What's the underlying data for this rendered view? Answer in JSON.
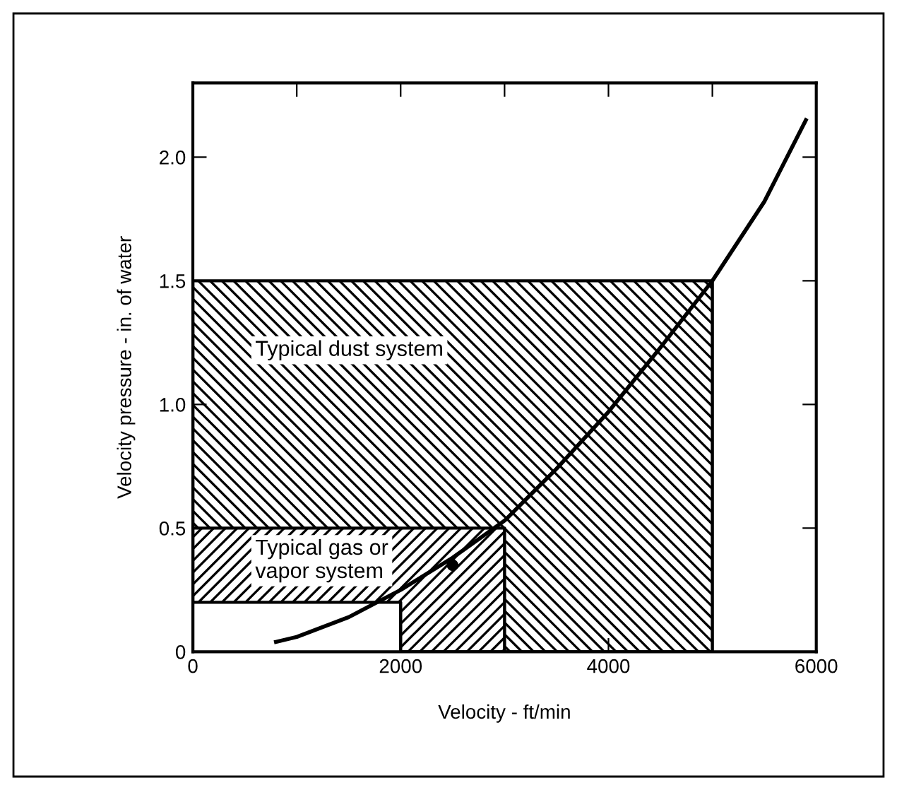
{
  "chart_data": {
    "type": "area",
    "xlabel": "Velocity - ft/min",
    "ylabel": "Velocity pressure - in. of water",
    "series": [
      {
        "color": "#000000",
        "x": [
          0,
          5000
        ],
        "values": [
          1.5,
          1.5
        ]
      },
      {
        "color": "#000000",
        "x": [
          0,
          3000
        ],
        "values": [
          0.5,
          0.5
        ]
      },
      {
        "color": "#ffffff",
        "x": [
          0,
          2000
        ],
        "values": [
          0.2,
          0.2
        ]
      },
      {
        "type": "line",
        "color": "#000000",
        "x": [
          800,
          1000,
          1500,
          2000,
          2500,
          3000,
          3500,
          4000,
          4500,
          5000,
          5500,
          5900
        ],
        "values": [
          0.04,
          0.06,
          0.14,
          0.25,
          0.38,
          0.53,
          0.74,
          0.97,
          1.23,
          1.5,
          1.82,
          2.15
        ]
      },
      {
        "type": "scatter",
        "color": "#000000",
        "x": [
          2500
        ],
        "values": [
          0.35
        ]
      }
    ],
    "annotations": [
      "Typical dust system",
      "Typical gas or\nvapor system"
    ],
    "xlim": [
      0,
      6000
    ],
    "ylim": [
      0,
      2.3
    ],
    "xticks": [
      0,
      {
        "value": 1000,
        "label": null
      },
      2000,
      {
        "value": 3000,
        "label": null
      },
      4000,
      {
        "value": 5000,
        "label": null
      },
      6000
    ],
    "yticks": [
      0,
      0.5,
      {
        "value": 1.0,
        "label": "1.0"
      },
      1.5,
      {
        "value": 2.0,
        "label": "2.0"
      }
    ],
    "grid": false
  }
}
